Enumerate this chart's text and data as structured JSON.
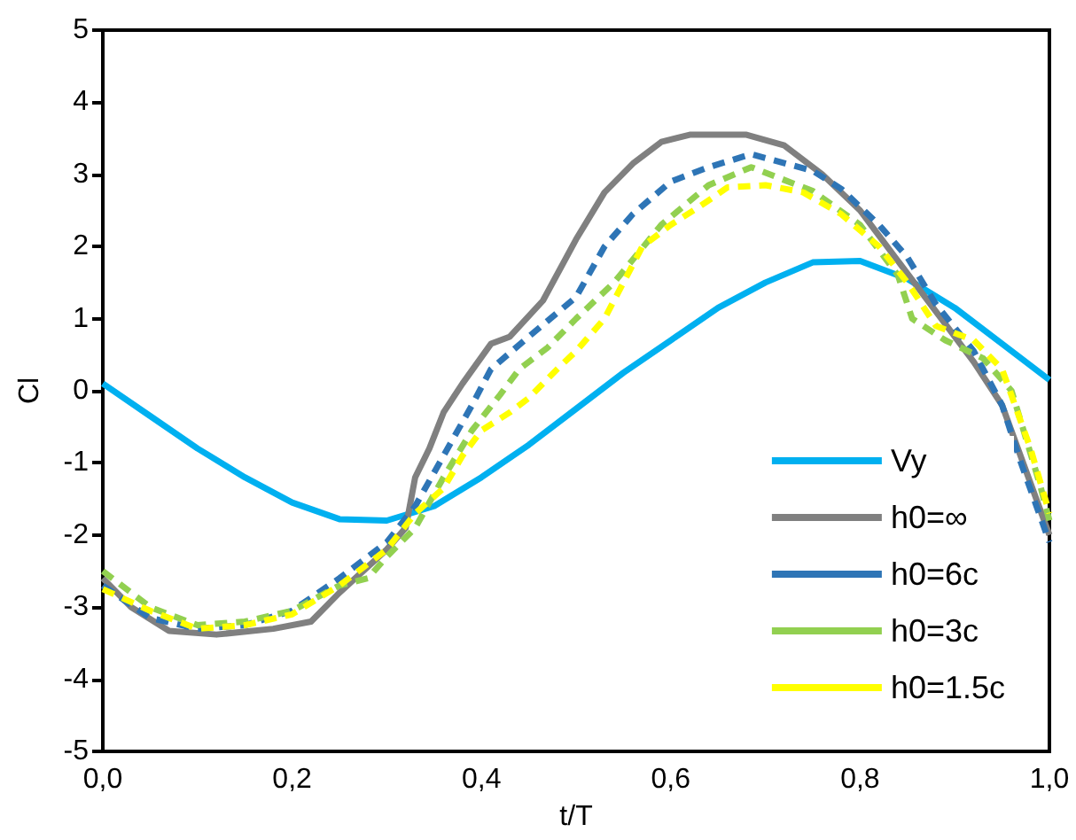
{
  "chart_data": {
    "type": "line",
    "xlabel": "t/T",
    "ylabel": "Cl",
    "xlim": [
      0,
      1
    ],
    "xticks": [
      {
        "value": 0,
        "label": "0,0"
      },
      {
        "value": 0.2,
        "label": "0,2"
      },
      {
        "value": 0.4,
        "label": "0,4"
      },
      {
        "value": 0.6,
        "label": "0,6"
      },
      {
        "value": 0.8,
        "label": "0,8"
      },
      {
        "value": 1,
        "label": "1,0"
      }
    ],
    "ylim": [
      -5,
      5
    ],
    "yticks": [
      -5,
      -4,
      -3,
      -2,
      -1,
      0,
      1,
      2,
      3,
      4,
      5
    ],
    "grid": false,
    "legend": "bottom right",
    "marker": "none",
    "series": [
      {
        "name": "Vy",
        "color": "#00b0f0",
        "line_style": "solid",
        "x": [
          0,
          0.05,
          0.1,
          0.15,
          0.2,
          0.25,
          0.3,
          0.35,
          0.4,
          0.45,
          0.5,
          0.55,
          0.6,
          0.65,
          0.7,
          0.75,
          0.8,
          0.85,
          0.9,
          0.95,
          1.0
        ],
        "values": [
          0.1,
          -0.35,
          -0.8,
          -1.2,
          -1.55,
          -1.78,
          -1.8,
          -1.6,
          -1.2,
          -0.75,
          -0.25,
          0.25,
          0.7,
          1.15,
          1.5,
          1.78,
          1.8,
          1.55,
          1.15,
          0.65,
          0.15
        ]
      },
      {
        "name": "h0=∞",
        "color": "#808080",
        "line_style": "solid",
        "x": [
          0,
          0.03,
          0.07,
          0.12,
          0.18,
          0.22,
          0.25,
          0.3,
          0.32,
          0.33,
          0.345,
          0.36,
          0.38,
          0.41,
          0.43,
          0.465,
          0.5,
          0.53,
          0.56,
          0.59,
          0.62,
          0.68,
          0.72,
          0.76,
          0.8,
          0.84,
          0.88,
          0.92,
          0.95,
          1.0
        ],
        "values": [
          -2.6,
          -3.0,
          -3.33,
          -3.38,
          -3.3,
          -3.2,
          -2.8,
          -2.2,
          -1.9,
          -1.2,
          -0.8,
          -0.3,
          0.1,
          0.65,
          0.75,
          1.25,
          2.1,
          2.75,
          3.15,
          3.45,
          3.55,
          3.55,
          3.4,
          3.0,
          2.5,
          1.8,
          1.1,
          0.4,
          -0.2,
          -2.0
        ]
      },
      {
        "name": "h0=6c",
        "color": "#2e75b6",
        "line_style": "dashed",
        "x": [
          0,
          0.05,
          0.1,
          0.15,
          0.2,
          0.25,
          0.3,
          0.33,
          0.36,
          0.39,
          0.41,
          0.45,
          0.5,
          0.53,
          0.56,
          0.6,
          0.64,
          0.685,
          0.75,
          0.78,
          0.82,
          0.85,
          0.88,
          0.92,
          0.95,
          0.97,
          1.0
        ],
        "values": [
          -2.7,
          -3.15,
          -3.3,
          -3.25,
          -3.05,
          -2.6,
          -2.1,
          -1.6,
          -0.9,
          -0.2,
          0.3,
          0.75,
          1.3,
          2.0,
          2.45,
          2.9,
          3.1,
          3.28,
          3.05,
          2.8,
          2.3,
          1.85,
          1.2,
          0.55,
          -0.2,
          -1.0,
          -2.1
        ]
      },
      {
        "name": "h0=3c",
        "color": "#92d050",
        "line_style": "dashed",
        "x": [
          0,
          0.05,
          0.1,
          0.15,
          0.2,
          0.25,
          0.28,
          0.3,
          0.33,
          0.36,
          0.39,
          0.42,
          0.44,
          0.47,
          0.5,
          0.54,
          0.59,
          0.64,
          0.685,
          0.75,
          0.8,
          0.84,
          0.855,
          0.89,
          0.93,
          0.96,
          0.99,
          1.0
        ],
        "values": [
          -2.5,
          -3.0,
          -3.25,
          -3.2,
          -3.05,
          -2.7,
          -2.6,
          -2.3,
          -1.9,
          -1.2,
          -0.55,
          -0.05,
          0.3,
          0.6,
          1.0,
          1.5,
          2.3,
          2.85,
          3.1,
          2.77,
          2.3,
          1.6,
          1.0,
          0.7,
          0.45,
          0.0,
          -1.3,
          -1.8
        ]
      },
      {
        "name": "h0=1.5c",
        "color": "#ffff00",
        "line_style": "dashed",
        "x": [
          0,
          0.05,
          0.1,
          0.15,
          0.2,
          0.25,
          0.3,
          0.33,
          0.36,
          0.38,
          0.4,
          0.43,
          0.45,
          0.48,
          0.5,
          0.53,
          0.57,
          0.6,
          0.63,
          0.66,
          0.7,
          0.74,
          0.78,
          0.82,
          0.85,
          0.88,
          0.92,
          0.95,
          0.98,
          1.0
        ],
        "values": [
          -2.75,
          -3.05,
          -3.3,
          -3.25,
          -3.1,
          -2.7,
          -2.2,
          -1.7,
          -1.35,
          -0.9,
          -0.55,
          -0.3,
          -0.1,
          0.3,
          0.55,
          1.0,
          2.0,
          2.3,
          2.55,
          2.82,
          2.85,
          2.75,
          2.45,
          2.0,
          1.5,
          0.9,
          0.7,
          0.3,
          -0.8,
          -1.7
        ]
      }
    ]
  }
}
